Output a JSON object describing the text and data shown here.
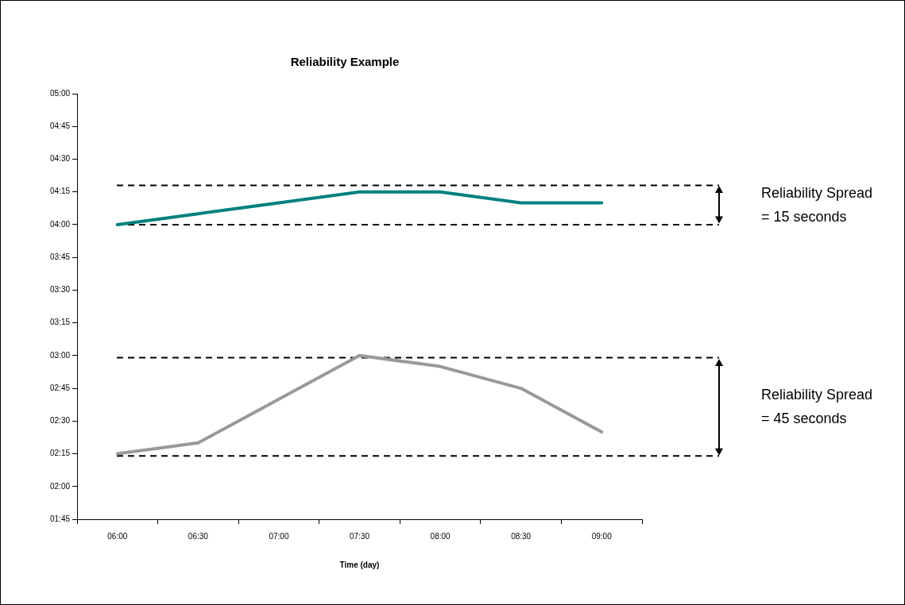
{
  "chart_data": {
    "type": "line",
    "title": "Reliability Example",
    "xlabel": "Time (day)",
    "categories": [
      "06:00",
      "06:30",
      "07:00",
      "07:30",
      "08:00",
      "08:30",
      "09:00"
    ],
    "series": [
      {
        "color": "#008080",
        "values": [
          240,
          245,
          250,
          255,
          255,
          250,
          250
        ]
      },
      {
        "color": "#999999",
        "values": [
          135,
          140,
          160,
          180,
          175,
          165,
          145
        ]
      }
    ],
    "ylim": [
      105,
      300
    ],
    "yticks": [
      {
        "value": 105,
        "label": "01:45"
      },
      {
        "value": 120,
        "label": "02:00"
      },
      {
        "value": 135,
        "label": "02:15"
      },
      {
        "value": 150,
        "label": "02:30"
      },
      {
        "value": 165,
        "label": "02:45"
      },
      {
        "value": 180,
        "label": "03:00"
      },
      {
        "value": 195,
        "label": "03:15"
      },
      {
        "value": 210,
        "label": "03:30"
      },
      {
        "value": 225,
        "label": "03:45"
      },
      {
        "value": 240,
        "label": "04:00"
      },
      {
        "value": 255,
        "label": "04:15"
      },
      {
        "value": 270,
        "label": "04:30"
      },
      {
        "value": 285,
        "label": "04:45"
      },
      {
        "value": 300,
        "label": "05:00"
      }
    ],
    "ref_lines": [
      {
        "axis": "y",
        "value": 258,
        "color": "#000000",
        "line_style": "dashed"
      },
      {
        "axis": "y",
        "value": 240,
        "color": "#000000",
        "line_style": "dashed"
      },
      {
        "axis": "y",
        "value": 179,
        "color": "#000000",
        "line_style": "dashed"
      },
      {
        "axis": "y",
        "value": 134,
        "color": "#000000",
        "line_style": "dashed"
      }
    ],
    "annotations": [
      "Reliability Spread\n= 15 seconds",
      "Reliability Spread\n= 45 seconds"
    ],
    "grid": false,
    "legend": false,
    "marker": "none",
    "line_style": "solid"
  }
}
